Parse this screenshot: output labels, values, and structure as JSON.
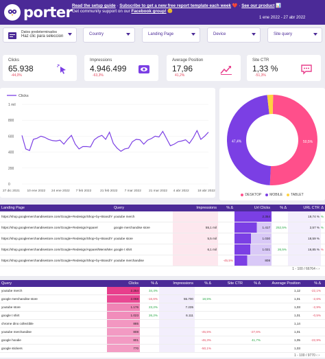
{
  "header": {
    "brand": "porter",
    "line1": [
      "Read the setup guide",
      "·",
      "Subscribe to get a new free report template each week",
      "❤️",
      "·",
      "See our product",
      "📊"
    ],
    "line2": [
      "Get community support on our",
      "Facebook group!",
      "😊"
    ],
    "date_range": "1 ene 2022 - 27 abr 2022"
  },
  "filters": {
    "datasource_label": "Datos predeterminados",
    "datasource_value": "Haz clic para seleccion",
    "country": "Country",
    "landing_page": "Landing Page",
    "device": "Device",
    "site_query": "Site query"
  },
  "kpis": [
    {
      "label": "Clicks",
      "value": "65.938",
      "delta": "-44,0%",
      "icon": "cursor-click-icon"
    },
    {
      "label": "Impressions",
      "value": "4.946.499",
      "delta": "-63,3%",
      "icon": "eye-icon"
    },
    {
      "label": "Average Position",
      "value": "17,96",
      "delta": "41,2%",
      "icon": "trend-up-icon"
    },
    {
      "label": "Site CTR",
      "value": "1,33 %",
      "delta": "-51,3%",
      "icon": "chat-icon"
    }
  ],
  "colors": {
    "brand": "#4b2a97",
    "accent": "#e83e8c",
    "desktop": "#ff4f8b",
    "mobile": "#7b3fe4",
    "tablet": "#ffd23f",
    "negative": "#e2455c",
    "positive": "#28a745"
  },
  "chart_data": [
    {
      "type": "line",
      "series": [
        {
          "name": "Clicks",
          "values": [
            610,
            440,
            420,
            560,
            575,
            600,
            585,
            560,
            545,
            540,
            550,
            500,
            560,
            610,
            500,
            440,
            470,
            470,
            465,
            555,
            590,
            610,
            560,
            650,
            510,
            450,
            410,
            440,
            450,
            530,
            560,
            555,
            500,
            550,
            570,
            600,
            590,
            660,
            570,
            480,
            500,
            530,
            540,
            555,
            510,
            580,
            670,
            560,
            600,
            650
          ]
        }
      ],
      "x_ticks": [
        "27 dic 2021",
        "10 ene 2022",
        "24 ene 2022",
        "7 feb 2022",
        "21 feb 2022",
        "7 mar 2022",
        "21 mar 2022",
        "4 abr 2022",
        "18 abr 2022"
      ],
      "y_ticks": [
        "0",
        "200",
        "400",
        "600",
        "800",
        "1 mil"
      ],
      "ylim": [
        0,
        1000
      ]
    },
    {
      "type": "pie",
      "categories": [
        "DESKTOP",
        "MOBILE",
        "TABLET"
      ],
      "values": [
        50.5,
        47.4,
        2.1
      ],
      "labels": [
        "50,5%",
        "47,4%",
        ""
      ]
    }
  ],
  "landing_table": {
    "columns": [
      "Landing Page",
      "Query",
      "Impressions",
      "% Δ",
      "Url Clicks",
      "% Δ",
      "URL CTR",
      "% Δ"
    ],
    "rows": [
      {
        "page": "https://shop.googlemerchandisestore.com/Google+Redesign/Shop+by+Brand/YouTube",
        "query": "youtube merch",
        "impr": "",
        "impr_d": "",
        "clicks": "2.354",
        "clicks_d": "",
        "ctr": "19,74 %",
        "ctr_d": "25%",
        "bar": 1.0
      },
      {
        "page": "https://shop.googlemerchandisestore.com/Google+Redesign/Apparel",
        "query": "google merchandise store",
        "impr": "55,1 mil",
        "impr_d": "",
        "clicks": "1.417",
        "clicks_d": "252,5%",
        "ctr": "2,57 %",
        "ctr_d": "266,9%",
        "bar": 0.6
      },
      {
        "page": "https://shop.googlemerchandisestore.com/Google+Redesign/Shop+by+Brand/YouTube",
        "query": "youtube store",
        "impr": "5,5 mil",
        "impr_d": "",
        "clicks": "1.030",
        "clicks_d": "",
        "ctr": "18,59 %",
        "ctr_d": "",
        "bar": 0.44
      },
      {
        "page": "https://shop.googlemerchandisestore.com/Google+Redesign/Apparel/Mens/Mens+T+Shirts",
        "query": "google t shirt",
        "impr": "6,1 mil",
        "impr_d": "",
        "clicks": "1.021",
        "clicks_d": "26,5%",
        "ctr": "16,85 %",
        "ctr_d": "-16,2%",
        "bar": 0.43
      },
      {
        "page": "https://shop.googlemerchandisestore.com/Google+Redesign/Shop+by+Brand/YouTube",
        "query": "youtube merchandise",
        "impr": "",
        "impr_d": "-45,5%",
        "clicks": "808",
        "clicks_d": "",
        "ctr": "",
        "ctr_d": "",
        "bar": 0.34
      }
    ],
    "pagination": "1 - 100 / 66764"
  },
  "query_table": {
    "columns": [
      "Query",
      "Clicks",
      "% Δ",
      "Impressions",
      "% Δ",
      "Site CTR",
      "% Δ",
      "Average Position",
      "% Δ"
    ],
    "rows": [
      {
        "q": "youtube merch",
        "clicks": "2.254",
        "cd": "34,4%",
        "impr": "",
        "id": "",
        "ctr": "",
        "ctrd": "",
        "pos": "1,12",
        "posd": "-22,1%"
      },
      {
        "q": "google merchandise store",
        "clicks": "2.068",
        "cd": "-16,6%",
        "impr": "55.700",
        "id": "18,5%",
        "ctr": "",
        "ctrd": "",
        "pos": "1,01",
        "posd": "-2,6%"
      },
      {
        "q": "youtube store",
        "clicks": "1.176",
        "cd": "23,2%",
        "impr": "7.235",
        "id": "",
        "ctr": "",
        "ctrd": "",
        "pos": "1,03",
        "posd": "-2,9%"
      },
      {
        "q": "google t shirt",
        "clicks": "1.023",
        "cd": "26,2%",
        "impr": "6.111",
        "id": "",
        "ctr": "",
        "ctrd": "",
        "pos": "1,01",
        "posd": "-0,5%"
      },
      {
        "q": "chrome dino collectible",
        "clicks": "885",
        "cd": "",
        "impr": "",
        "id": "",
        "ctr": "",
        "ctrd": "",
        "pos": "1,14",
        "posd": ""
      },
      {
        "q": "youtube merchandise",
        "clicks": "808",
        "cd": "",
        "impr": "",
        "id": "-45,5%",
        "ctr": "",
        "ctrd": "-27,6%",
        "pos": "1,01",
        "posd": ""
      },
      {
        "q": "google hoodie",
        "clicks": "801",
        "cd": "",
        "impr": "",
        "id": "-46,3%",
        "ctr": "",
        "ctrd": "41,7%",
        "pos": "1,05",
        "posd": "-22,9%"
      },
      {
        "q": "google stickers",
        "clicks": "770",
        "cd": "",
        "impr": "",
        "id": "-50,1%",
        "ctr": "",
        "ctrd": "",
        "pos": "1,03",
        "posd": ""
      }
    ],
    "pagination": "1 - 100 / 9770"
  }
}
